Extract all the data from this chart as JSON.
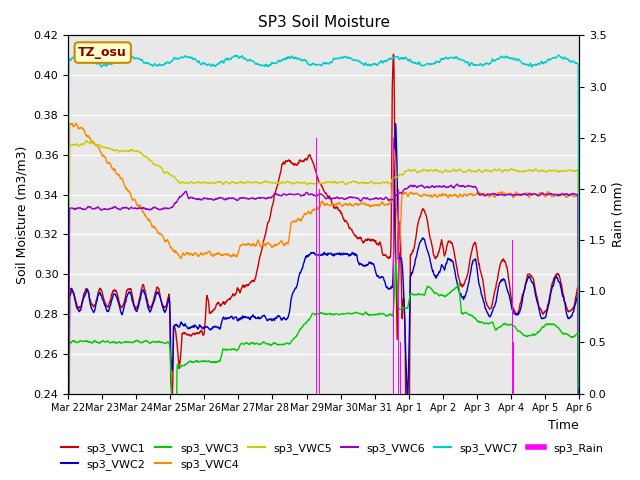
{
  "title": "SP3 Soil Moisture",
  "ylabel_left": "Soil Moisture (m3/m3)",
  "ylabel_right": "Rain (mm)",
  "xlabel": "Time",
  "ylim_left": [
    0.24,
    0.42
  ],
  "ylim_right": [
    0.0,
    3.5
  ],
  "colors": {
    "sp3_VWC1": "#cc0000",
    "sp3_VWC2": "#0000cc",
    "sp3_VWC3": "#00cc00",
    "sp3_VWC4": "#ff8800",
    "sp3_VWC5": "#cccc00",
    "sp3_VWC6": "#9900cc",
    "sp3_VWC7": "#00cccc",
    "sp3_Rain": "#ff00ff"
  },
  "bg_color": "#e8e8e8",
  "watermark": "TZ_osu",
  "watermark_color": "#880000",
  "watermark_bg": "#ffffcc",
  "watermark_border": "#cc8800",
  "yticks": [
    0.24,
    0.26,
    0.28,
    0.3,
    0.32,
    0.34,
    0.36,
    0.38,
    0.4,
    0.42
  ],
  "yticks_right": [
    0.0,
    0.5,
    1.0,
    1.5,
    2.0,
    2.5,
    3.0,
    3.5
  ],
  "legend_row1": [
    "sp3_VWC1",
    "sp3_VWC2",
    "sp3_VWC3",
    "sp3_VWC4",
    "sp3_VWC5",
    "sp3_VWC6"
  ],
  "legend_row2": [
    "sp3_VWC7",
    "sp3_Rain"
  ]
}
